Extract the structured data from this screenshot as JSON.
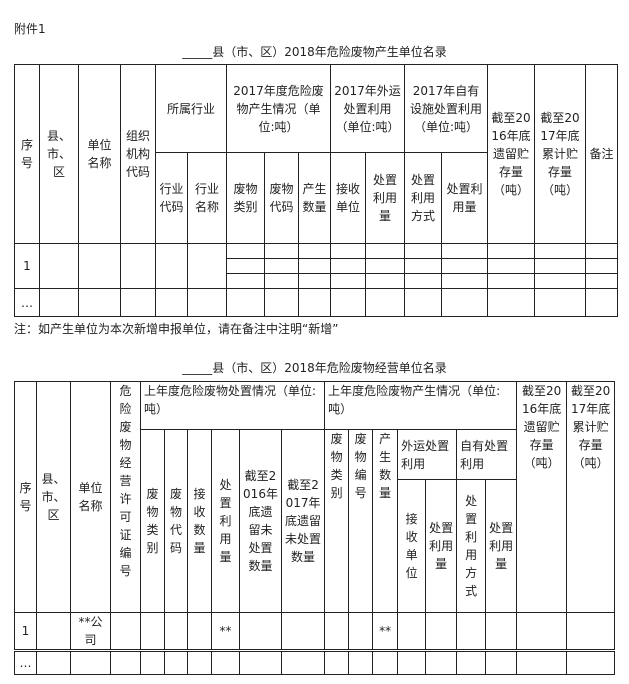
{
  "attachment": "附件1",
  "table1": {
    "title": "_____县（市、区）2018年危险废物产生单位名录",
    "headers": {
      "seq": "序号",
      "county": "县、市、区",
      "unit": "单位名称",
      "org_code": "组织机构代码",
      "industry": "所属行业",
      "gen": "2017年度危险废物产生情况（单位:吨）",
      "out": "2017年外运处置利用（单位:吨）",
      "own": "2017年自有设施处置利用（单位:吨）",
      "stock2016": "截至2016年底遗留贮存量（吨）",
      "stock2017": "截至2017年底累计贮存量（吨）",
      "remark": "备注",
      "ind_code": "行业代码",
      "ind_name": "行业名称",
      "waste_cat": "废物类别",
      "waste_code": "废物代码",
      "amount": "产生数量",
      "recv": "接收单位",
      "disp": "处置利用量",
      "own_method": "处置利用方式",
      "own_disp": "处置利用量"
    },
    "rows": [
      {
        "seq": "1"
      },
      {
        "seq": "…"
      }
    ]
  },
  "note": "注：如产生单位为本次新增申报单位，请在备注中注明“新增”",
  "table2": {
    "title": "_____县（市、区）2018年危险废物经营单位名录",
    "headers": {
      "seq": "序号",
      "county": "县、市、区",
      "unit": "单位名称",
      "license": "危险废物经营许可证编号",
      "disp_group": "上年度危险废物处置情况（单位:吨）",
      "gen_group": "上年度危险废物产生情况（单位:吨）",
      "stock2016": "截至2016年底遗留贮存量（吨）",
      "stock2017": "截至2017年底累计贮存量（吨）",
      "d_cat": "废物类别",
      "d_code": "废物代码",
      "d_recv": "接收数量",
      "d_disp": "处置利用量",
      "d_left2016": "截至2016年底遗留未处置数量",
      "d_left2017": "截至2017年底遗留未处置数量",
      "g_cat": "废物类别",
      "g_code": "废物编号",
      "g_amount": "产生数量",
      "g_out": "外运处置利用",
      "g_own": "自有处置利用",
      "g_recv": "接收单位",
      "g_disp": "处置利用量",
      "g_method": "处置利用方式",
      "g_own_disp": "处置利用量"
    },
    "rows": [
      {
        "seq": "1",
        "unit": "**公司",
        "d_disp": "**",
        "g_amount": "**"
      },
      {
        "seq": "…"
      }
    ]
  }
}
